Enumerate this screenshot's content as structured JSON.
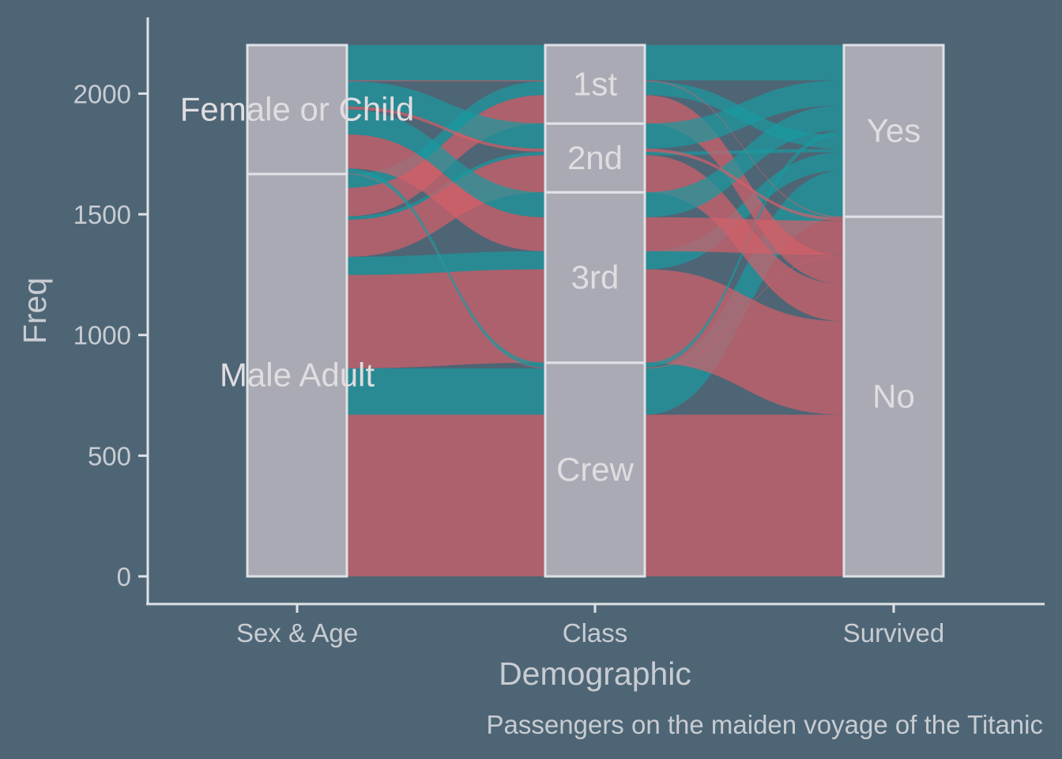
{
  "chart_data": {
    "type": "alluvial",
    "title": "",
    "xlabel": "Demographic",
    "ylabel": "Freq",
    "caption": "Passengers on the maiden voyage of the Titanic",
    "ylim": [
      0,
      2201
    ],
    "y_ticks": [
      0,
      500,
      1000,
      1500,
      2000
    ],
    "axes": [
      "Sex & Age",
      "Class",
      "Survived"
    ],
    "strata": [
      [
        "Male Adult",
        "Female or Child"
      ],
      [
        "Crew",
        "3rd",
        "2nd",
        "1st"
      ],
      [
        "No",
        "Yes"
      ]
    ],
    "flows": [
      {
        "sexage": "Male Adult",
        "class": "Crew",
        "survived": "No",
        "freq": 670
      },
      {
        "sexage": "Male Adult",
        "class": "Crew",
        "survived": "Yes",
        "freq": 192
      },
      {
        "sexage": "Male Adult",
        "class": "3rd",
        "survived": "No",
        "freq": 387
      },
      {
        "sexage": "Male Adult",
        "class": "3rd",
        "survived": "Yes",
        "freq": 75
      },
      {
        "sexage": "Male Adult",
        "class": "2nd",
        "survived": "No",
        "freq": 154
      },
      {
        "sexage": "Male Adult",
        "class": "2nd",
        "survived": "Yes",
        "freq": 14
      },
      {
        "sexage": "Male Adult",
        "class": "1st",
        "survived": "No",
        "freq": 118
      },
      {
        "sexage": "Male Adult",
        "class": "1st",
        "survived": "Yes",
        "freq": 57
      },
      {
        "sexage": "Female or Child",
        "class": "Crew",
        "survived": "No",
        "freq": 3
      },
      {
        "sexage": "Female or Child",
        "class": "Crew",
        "survived": "Yes",
        "freq": 20
      },
      {
        "sexage": "Female or Child",
        "class": "3rd",
        "survived": "No",
        "freq": 141
      },
      {
        "sexage": "Female or Child",
        "class": "3rd",
        "survived": "Yes",
        "freq": 103
      },
      {
        "sexage": "Female or Child",
        "class": "2nd",
        "survived": "No",
        "freq": 13
      },
      {
        "sexage": "Female or Child",
        "class": "2nd",
        "survived": "Yes",
        "freq": 104
      },
      {
        "sexage": "Female or Child",
        "class": "1st",
        "survived": "No",
        "freq": 4
      },
      {
        "sexage": "Female or Child",
        "class": "1st",
        "survived": "Yes",
        "freq": 146
      }
    ],
    "colors": {
      "background": "#4e6575",
      "no_flow": "#d4606a",
      "yes_flow": "#1a9aa0",
      "stratum_fill": "#c8c2ca",
      "stratum_border": "#dfe2e6",
      "text": "#c8ccd2"
    }
  }
}
